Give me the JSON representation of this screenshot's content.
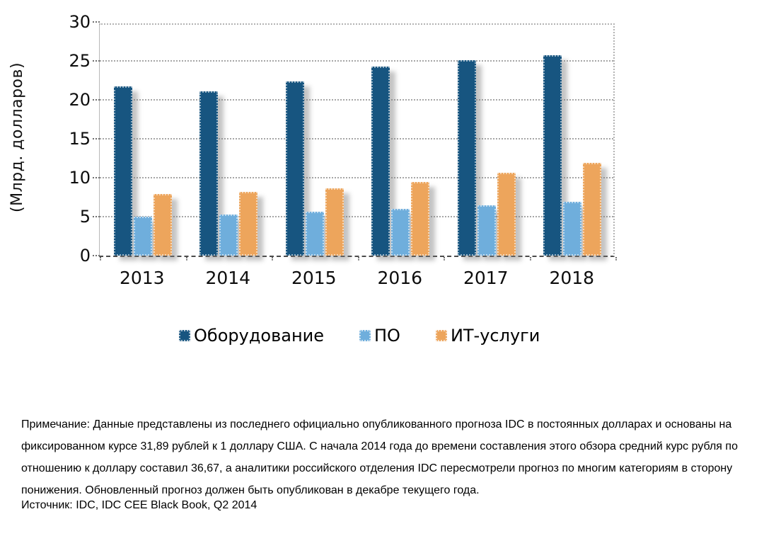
{
  "chart_data": {
    "type": "bar",
    "title": "",
    "ylabel": "(Млрд. долларов)",
    "xlabel": "",
    "ylim": [
      0,
      30
    ],
    "yticks": [
      0,
      5,
      10,
      15,
      20,
      25,
      30
    ],
    "grid": true,
    "legend_position": "bottom",
    "categories": [
      "2013",
      "2014",
      "2015",
      "2016",
      "2017",
      "2018"
    ],
    "series": [
      {
        "name": "Оборудование",
        "color": "#175580",
        "values": [
          21.7,
          21.1,
          22.4,
          24.3,
          25.1,
          25.7
        ]
      },
      {
        "name": "ПО",
        "color": "#6FAEDC",
        "values": [
          5.0,
          5.3,
          5.6,
          6.0,
          6.5,
          6.9
        ]
      },
      {
        "name": "ИТ-услуги",
        "color": "#EDA55C",
        "values": [
          7.9,
          8.2,
          8.6,
          9.5,
          10.6,
          11.9
        ]
      }
    ]
  },
  "note": {
    "lines": [
      "Примечание: Данные представлены из последнего официально опубликованного прогноза IDC в постоянных долларах и основаны на",
      "фиксированном курсе 31,89 рублей к 1 доллару США. С начала 2014 года до времени составления этого обзора средний курс рубля по",
      "отношению к доллару составил 36,67, а аналитики российского отделения IDC пересмотрели прогноз по многим категориям в сторону",
      "понижения. Обновленный прогноз должен быть опубликован в декабре текущего года."
    ]
  },
  "source": "Источник: IDC, IDC CEE Black Book, Q2 2014"
}
